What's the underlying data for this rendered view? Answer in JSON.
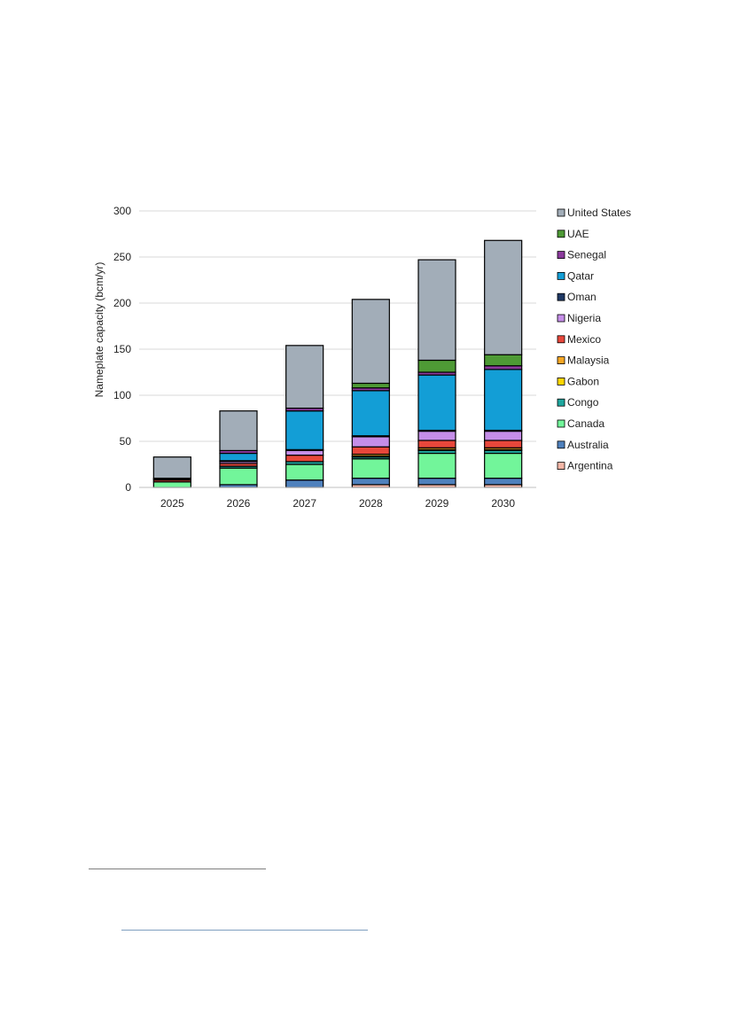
{
  "chart_data": {
    "type": "bar",
    "stacked": true,
    "ylabel": "Nameplate capacity (bcm/yr)",
    "xlabel": "",
    "ylim": [
      0,
      300
    ],
    "yticks": [
      0,
      50,
      100,
      150,
      200,
      250,
      300
    ],
    "grid": true,
    "legend_position": "right",
    "categories": [
      "2025",
      "2026",
      "2027",
      "2028",
      "2029",
      "2030"
    ],
    "series": [
      {
        "name": "Argentina",
        "color": "#f4b6a6",
        "values": [
          0,
          0,
          0,
          3,
          3,
          3
        ]
      },
      {
        "name": "Australia",
        "color": "#4f81bd",
        "values": [
          0,
          3,
          8,
          7,
          7,
          7
        ]
      },
      {
        "name": "Canada",
        "color": "#72f59a",
        "values": [
          6,
          18,
          17,
          21,
          27,
          27
        ]
      },
      {
        "name": "Congo",
        "color": "#1fa79f",
        "values": [
          0,
          2,
          3,
          2,
          3,
          3
        ]
      },
      {
        "name": "Gabon",
        "color": "#ffd600",
        "values": [
          0,
          0,
          0,
          1,
          1,
          1
        ]
      },
      {
        "name": "Malaysia",
        "color": "#f6a623",
        "values": [
          0,
          0,
          0,
          2,
          2,
          2
        ]
      },
      {
        "name": "Mexico",
        "color": "#e8473b",
        "values": [
          2,
          3,
          7,
          8,
          8,
          8
        ]
      },
      {
        "name": "Nigeria",
        "color": "#c58ee8",
        "values": [
          1,
          2,
          5,
          11,
          10,
          10
        ]
      },
      {
        "name": "Oman",
        "color": "#1f3864",
        "values": [
          0,
          1,
          1,
          1,
          1,
          1
        ]
      },
      {
        "name": "Qatar",
        "color": "#139ed6",
        "values": [
          0,
          8,
          42,
          49,
          60,
          66
        ]
      },
      {
        "name": "Senegal",
        "color": "#8b3a9c",
        "values": [
          1,
          3,
          3,
          3,
          3,
          4
        ]
      },
      {
        "name": "UAE",
        "color": "#4e9a35",
        "values": [
          0,
          0,
          0,
          5,
          13,
          12
        ]
      },
      {
        "name": "United States",
        "color": "#a2adb8",
        "values": [
          23,
          43,
          68,
          91,
          109,
          124
        ]
      }
    ]
  }
}
